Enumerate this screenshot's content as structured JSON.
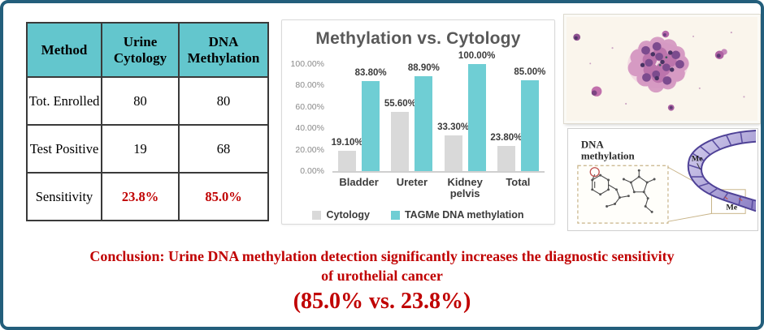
{
  "colors": {
    "border_navy": "#235E7B",
    "accent_teal": "#6FCED4",
    "table_header_teal": "#63C6CD",
    "bar_gray": "#D9D9D9",
    "highlight_red": "#C00000",
    "chart_title_gray": "#595959"
  },
  "table": {
    "headers": [
      "Method",
      "Urine Cytology",
      "DNA Methylation"
    ],
    "rows": [
      [
        "Tot. Enrolled",
        "80",
        "80"
      ],
      [
        "Test Positive",
        "19",
        "68"
      ],
      [
        "Sensitivity",
        "23.8%",
        "85.0%"
      ]
    ]
  },
  "chart_data": {
    "type": "bar",
    "title": "Methylation vs. Cytology",
    "categories": [
      "Bladder",
      "Ureter",
      "Kidney pelvis",
      "Total"
    ],
    "series": [
      {
        "name": "Cytology",
        "color": "#D9D9D9",
        "values": [
          19.1,
          55.6,
          33.3,
          23.8
        ],
        "labels": [
          "19.10%",
          "55.60%",
          "33.30%",
          "23.80%"
        ]
      },
      {
        "name": "TAGMe DNA methylation",
        "color": "#6FCED4",
        "values": [
          83.8,
          88.9,
          100.0,
          85.0
        ],
        "labels": [
          "83.80%",
          "88.90%",
          "100.00%",
          "85.00%"
        ]
      }
    ],
    "y_ticks": [
      "100.00%",
      "80.00%",
      "60.00%",
      "40.00%",
      "20.00%",
      "0.00%"
    ],
    "ylim": [
      0,
      100
    ],
    "grid": false,
    "legend_position": "bottom"
  },
  "images": {
    "dna_diagram": {
      "title_line1": "DNA",
      "title_line2": "methylation",
      "me_label": "Me"
    }
  },
  "conclusion": {
    "line1": "Conclusion: Urine DNA methylation detection significantly increases the diagnostic sensitivity",
    "line2": "of urothelial cancer",
    "line3": "(85.0% vs. 23.8%)"
  }
}
